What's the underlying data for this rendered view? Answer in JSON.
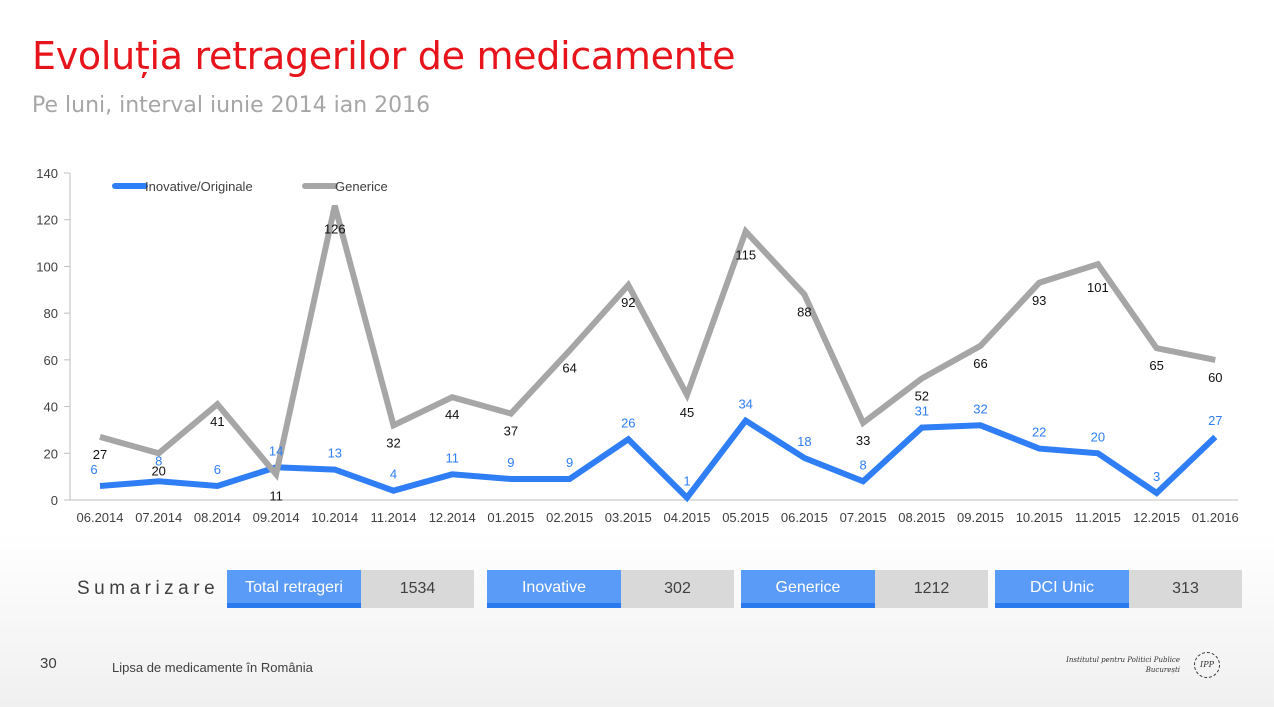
{
  "header": {
    "title": "Evoluția retragerilor de medicamente",
    "subtitle": "Pe luni, interval iunie 2014 ian 2016"
  },
  "chart_data": {
    "type": "line",
    "x": [
      "06.2014",
      "07.2014",
      "08.2014",
      "09.2014",
      "10.2014",
      "11.2014",
      "12.2014",
      "01.2015",
      "02.2015",
      "03.2015",
      "04.2015",
      "05.2015",
      "06.2015",
      "07.2015",
      "08.2015",
      "09.2015",
      "10.2015",
      "11.2015",
      "12.2015",
      "01.2016"
    ],
    "y_ticks": [
      0,
      20,
      40,
      60,
      80,
      100,
      120,
      140
    ],
    "ylim": [
      0,
      140
    ],
    "grid": false,
    "legend_position": "top-left",
    "series": [
      {
        "name": "Inovative/Originale",
        "color": "#2f7ef5",
        "label_color": "#2f7ef5",
        "values": [
          6,
          8,
          6,
          14,
          13,
          4,
          11,
          9,
          9,
          26,
          1,
          34,
          18,
          8,
          31,
          32,
          22,
          20,
          3,
          27
        ]
      },
      {
        "name": "Generice",
        "color": "#a6a6a6",
        "label_color": "#111111",
        "values": [
          27,
          20,
          41,
          11,
          126,
          32,
          44,
          37,
          64,
          92,
          45,
          115,
          88,
          33,
          52,
          66,
          93,
          101,
          65,
          60
        ]
      }
    ]
  },
  "summary": {
    "label": "Sumarizare",
    "items": [
      {
        "name": "Total retrageri",
        "value": "1534"
      },
      {
        "name": "Inovative",
        "value": "302"
      },
      {
        "name": "Generice",
        "value": "1212"
      },
      {
        "name": "DCI Unic",
        "value": "313"
      }
    ]
  },
  "footer": {
    "page_number": "30",
    "text": "Lipsa de medicamente în România",
    "logo_line1": "Institutul pentru Politici Publice",
    "logo_line2": "București",
    "logo_mark": "IPP"
  }
}
